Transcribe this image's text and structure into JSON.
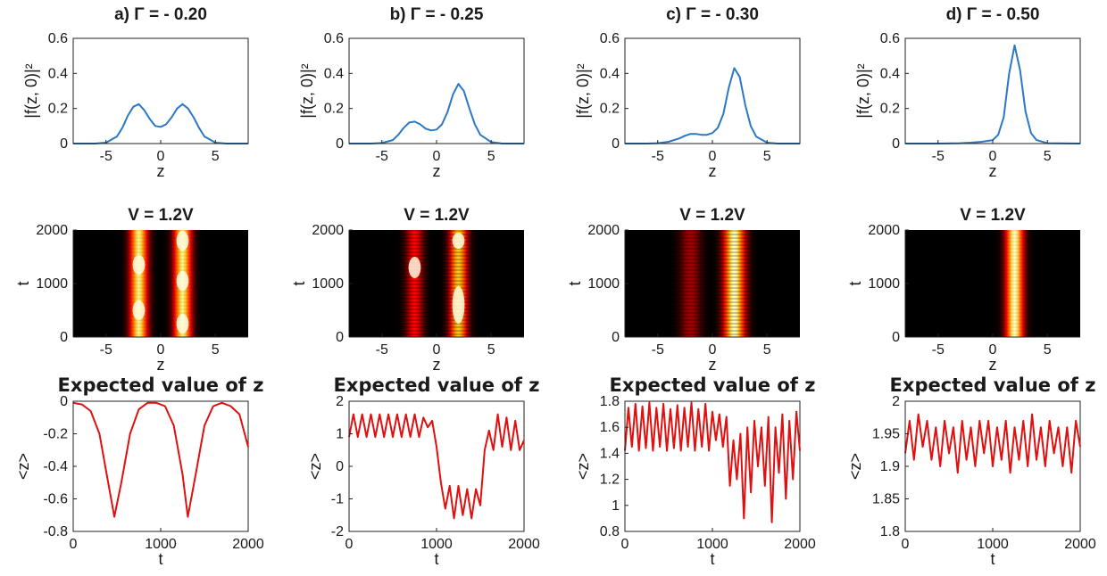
{
  "chart_data": [
    {
      "type": "line",
      "row": "density",
      "column": "a",
      "title": "a) Γ = - 0.20",
      "xlabel": "z",
      "ylabel": "|f(z, 0)|²",
      "xlim": [
        -8,
        8
      ],
      "ylim": [
        0,
        0.6
      ],
      "xticks": [
        "-5",
        "0",
        "5"
      ],
      "yticks": [
        "0",
        "0.2",
        "0.4",
        "0.6"
      ],
      "color": "#2a78c6",
      "series": [
        {
          "x": [
            -8,
            -6,
            -5,
            -4,
            -3.5,
            -3,
            -2.5,
            -2,
            -1.5,
            -1,
            -0.5,
            0,
            0.5,
            1,
            1.5,
            2,
            2.5,
            3,
            3.5,
            4,
            5,
            6,
            8
          ],
          "values": [
            0,
            0,
            0.005,
            0.04,
            0.09,
            0.16,
            0.21,
            0.225,
            0.19,
            0.14,
            0.1,
            0.095,
            0.11,
            0.15,
            0.2,
            0.225,
            0.2,
            0.15,
            0.09,
            0.04,
            0.005,
            0,
            0
          ]
        }
      ]
    },
    {
      "type": "line",
      "row": "density",
      "column": "b",
      "title": "b) Γ = - 0.25",
      "xlabel": "z",
      "ylabel": "|f(z, 0)|²",
      "xlim": [
        -8,
        8
      ],
      "ylim": [
        0,
        0.6
      ],
      "xticks": [
        "-5",
        "0",
        "5"
      ],
      "yticks": [
        "0",
        "0.2",
        "0.4",
        "0.6"
      ],
      "color": "#2a78c6",
      "series": [
        {
          "x": [
            -8,
            -6,
            -5,
            -4,
            -3.5,
            -3,
            -2.5,
            -2,
            -1.5,
            -1,
            -0.5,
            0,
            0.5,
            1,
            1.5,
            2,
            2.5,
            3,
            3.5,
            4,
            5,
            6,
            8
          ],
          "values": [
            0,
            0,
            0.003,
            0.02,
            0.05,
            0.09,
            0.12,
            0.125,
            0.11,
            0.085,
            0.075,
            0.08,
            0.11,
            0.18,
            0.28,
            0.34,
            0.3,
            0.2,
            0.11,
            0.05,
            0.008,
            0,
            0
          ]
        }
      ]
    },
    {
      "type": "line",
      "row": "density",
      "column": "c",
      "title": "c) Γ = - 0.30",
      "xlabel": "z",
      "ylabel": "|f(z, 0)|²",
      "xlim": [
        -8,
        8
      ],
      "ylim": [
        0,
        0.6
      ],
      "xticks": [
        "-5",
        "0",
        "5"
      ],
      "yticks": [
        "0",
        "0.2",
        "0.4",
        "0.6"
      ],
      "color": "#2a78c6",
      "series": [
        {
          "x": [
            -8,
            -6,
            -5,
            -4,
            -3,
            -2.5,
            -2,
            -1.5,
            -1,
            -0.5,
            0,
            0.5,
            1,
            1.5,
            2,
            2.5,
            3,
            3.5,
            4,
            5,
            6,
            8
          ],
          "values": [
            0,
            0,
            0.002,
            0.01,
            0.03,
            0.045,
            0.055,
            0.055,
            0.05,
            0.05,
            0.06,
            0.09,
            0.17,
            0.32,
            0.43,
            0.38,
            0.22,
            0.1,
            0.04,
            0.005,
            0,
            0
          ]
        }
      ]
    },
    {
      "type": "line",
      "row": "density",
      "column": "d",
      "title": "d) Γ = - 0.50",
      "xlabel": "z",
      "ylabel": "|f(z, 0)|²",
      "xlim": [
        -8,
        8
      ],
      "ylim": [
        0,
        0.6
      ],
      "xticks": [
        "-5",
        "0",
        "5"
      ],
      "yticks": [
        "0",
        "0.2",
        "0.4",
        "0.6"
      ],
      "color": "#2a78c6",
      "series": [
        {
          "x": [
            -8,
            -5,
            -3,
            -2,
            -1,
            0,
            0.5,
            1,
            1.5,
            2,
            2.5,
            3,
            3.5,
            4,
            5,
            8
          ],
          "values": [
            0,
            0,
            0.002,
            0.005,
            0.01,
            0.02,
            0.05,
            0.15,
            0.4,
            0.56,
            0.42,
            0.18,
            0.06,
            0.02,
            0.002,
            0
          ]
        }
      ]
    },
    {
      "type": "heatmap",
      "row": "evolution",
      "column": "a",
      "title": "V = 1.2V",
      "xlabel": "z",
      "ylabel": "t",
      "xlim": [
        -8,
        8
      ],
      "ylim": [
        0,
        2000
      ],
      "xticks": [
        "-5",
        "0",
        "5"
      ],
      "yticks": [
        "0",
        "1000",
        "2000"
      ],
      "bands": [
        {
          "z": -2,
          "width": 1.0,
          "intensity": 0.95
        },
        {
          "z": 2,
          "width": 1.0,
          "intensity": 0.95
        }
      ],
      "bright_spots": [
        {
          "z": -2,
          "t": 1350
        },
        {
          "z": -2,
          "t": 500
        },
        {
          "z": 2,
          "t": 1800
        },
        {
          "z": 2,
          "t": 1050
        },
        {
          "z": 2,
          "t": 250
        }
      ]
    },
    {
      "type": "heatmap",
      "row": "evolution",
      "column": "b",
      "title": "V = 1.2V",
      "xlabel": "z",
      "ylabel": "t",
      "xlim": [
        -8,
        8
      ],
      "ylim": [
        0,
        2000
      ],
      "xticks": [
        "-5",
        "0",
        "5"
      ],
      "yticks": [
        "0",
        "1000",
        "2000"
      ],
      "bands": [
        {
          "z": -2,
          "width": 1.0,
          "intensity": 0.4
        },
        {
          "z": 2,
          "width": 1.0,
          "intensity": 0.85
        }
      ],
      "bright_spots": [
        {
          "z": -2,
          "t": 1300,
          "height": 400
        },
        {
          "z": 2,
          "t": 1800,
          "height": 300
        },
        {
          "z": 2,
          "t": 600,
          "height": 700
        }
      ]
    },
    {
      "type": "heatmap",
      "row": "evolution",
      "column": "c",
      "title": "V = 1.2V",
      "xlabel": "z",
      "ylabel": "t",
      "xlim": [
        -8,
        8
      ],
      "ylim": [
        0,
        2000
      ],
      "xticks": [
        "-5",
        "0",
        "5"
      ],
      "yticks": [
        "0",
        "1000",
        "2000"
      ],
      "bands": [
        {
          "z": -2,
          "width": 1.2,
          "intensity": 0.25
        },
        {
          "z": 2,
          "width": 1.2,
          "intensity": 1.0
        }
      ],
      "bright_spots": []
    },
    {
      "type": "heatmap",
      "row": "evolution",
      "column": "d",
      "title": "V = 1.2V",
      "xlabel": "z",
      "ylabel": "t",
      "xlim": [
        -8,
        8
      ],
      "ylim": [
        0,
        2000
      ],
      "xticks": [
        "-5",
        "0",
        "5"
      ],
      "yticks": [
        "0",
        "1000",
        "2000"
      ],
      "bands": [
        {
          "z": 2,
          "width": 1.0,
          "intensity": 1.0
        }
      ],
      "bright_spots": []
    },
    {
      "type": "line",
      "row": "expected",
      "column": "a",
      "title": "Expected value of z",
      "xlabel": "t",
      "ylabel": "<z>",
      "xlim": [
        0,
        2000
      ],
      "ylim": [
        -0.8,
        0
      ],
      "xticks": [
        "0",
        "1000",
        "2000"
      ],
      "yticks": [
        "-0.8",
        "-0.6",
        "-0.4",
        "-0.2",
        "0"
      ],
      "color": "#e01010",
      "series": [
        {
          "x": [
            0,
            100,
            200,
            300,
            400,
            470,
            550,
            650,
            750,
            850,
            950,
            1050,
            1150,
            1250,
            1310,
            1400,
            1500,
            1600,
            1700,
            1800,
            1900,
            2000
          ],
          "values": [
            -0.01,
            -0.02,
            -0.06,
            -0.2,
            -0.5,
            -0.71,
            -0.5,
            -0.2,
            -0.05,
            -0.01,
            -0.01,
            -0.03,
            -0.15,
            -0.45,
            -0.71,
            -0.45,
            -0.15,
            -0.03,
            -0.01,
            -0.03,
            -0.08,
            -0.28
          ]
        }
      ]
    },
    {
      "type": "line",
      "row": "expected",
      "column": "b",
      "title": "Expected value of z",
      "xlabel": "t",
      "ylabel": "<z>",
      "xlim": [
        0,
        2000
      ],
      "ylim": [
        -2,
        2
      ],
      "xticks": [
        "0",
        "1000",
        "2000"
      ],
      "yticks": [
        "-2",
        "-1",
        "0",
        "1",
        "2"
      ],
      "color": "#e01010",
      "series": [
        {
          "x": [
            0,
            50,
            100,
            150,
            200,
            250,
            300,
            350,
            400,
            450,
            500,
            550,
            600,
            650,
            700,
            750,
            800,
            850,
            900,
            950,
            1000,
            1050,
            1100,
            1150,
            1200,
            1250,
            1300,
            1350,
            1400,
            1450,
            1500,
            1550,
            1600,
            1650,
            1700,
            1750,
            1800,
            1850,
            1900,
            1950,
            2000
          ],
          "values": [
            0.9,
            1.6,
            0.9,
            1.6,
            0.9,
            1.6,
            0.9,
            1.6,
            0.9,
            1.6,
            0.9,
            1.6,
            0.9,
            1.6,
            0.9,
            1.6,
            0.9,
            1.5,
            1.2,
            1.4,
            0.6,
            -0.5,
            -1.3,
            -0.6,
            -1.6,
            -0.6,
            -1.5,
            -0.7,
            -1.6,
            -0.7,
            -1.2,
            0.5,
            1.1,
            0.5,
            1.6,
            0.6,
            1.5,
            0.5,
            1.4,
            0.5,
            0.8
          ]
        }
      ]
    },
    {
      "type": "line",
      "row": "expected",
      "column": "c",
      "title": "Expected value of z",
      "xlabel": "t",
      "ylabel": "<z>",
      "xlim": [
        0,
        2000
      ],
      "ylim": [
        0.8,
        1.8
      ],
      "xticks": [
        "0",
        "1000",
        "2000"
      ],
      "yticks": [
        "0.8",
        "1",
        "1.2",
        "1.4",
        "1.6",
        "1.8"
      ],
      "color": "#e01010",
      "series": [
        {
          "x": [
            0,
            40,
            80,
            120,
            160,
            200,
            240,
            280,
            320,
            360,
            400,
            440,
            480,
            520,
            560,
            600,
            640,
            680,
            720,
            760,
            800,
            840,
            880,
            920,
            960,
            1000,
            1040,
            1080,
            1120,
            1160,
            1200,
            1240,
            1280,
            1320,
            1360,
            1400,
            1440,
            1480,
            1520,
            1560,
            1600,
            1640,
            1680,
            1720,
            1760,
            1800,
            1840,
            1880,
            1920,
            1960,
            2000
          ],
          "values": [
            1.42,
            1.75,
            1.45,
            1.78,
            1.42,
            1.76,
            1.44,
            1.79,
            1.42,
            1.75,
            1.45,
            1.78,
            1.42,
            1.74,
            1.44,
            1.77,
            1.42,
            1.75,
            1.45,
            1.79,
            1.42,
            1.74,
            1.45,
            1.78,
            1.42,
            1.72,
            1.5,
            1.7,
            1.45,
            1.68,
            1.15,
            1.5,
            1.2,
            1.55,
            0.9,
            1.6,
            1.1,
            1.65,
            1.3,
            1.6,
            1.15,
            1.68,
            0.87,
            1.6,
            1.25,
            1.7,
            1.05,
            1.65,
            1.2,
            1.72,
            1.42
          ]
        }
      ]
    },
    {
      "type": "line",
      "row": "expected",
      "column": "d",
      "title": "Expected value of z",
      "xlabel": "t",
      "ylabel": "<z>",
      "xlim": [
        0,
        2000
      ],
      "ylim": [
        1.8,
        2
      ],
      "xticks": [
        "0",
        "1000",
        "2000"
      ],
      "yticks": [
        "1.8",
        "1.85",
        "1.9",
        "1.95",
        "2"
      ],
      "color": "#e01010",
      "series": [
        {
          "x": [
            0,
            50,
            100,
            150,
            200,
            250,
            300,
            350,
            400,
            450,
            500,
            550,
            600,
            650,
            700,
            750,
            800,
            850,
            900,
            950,
            1000,
            1050,
            1100,
            1150,
            1200,
            1250,
            1300,
            1350,
            1400,
            1450,
            1500,
            1550,
            1600,
            1650,
            1700,
            1750,
            1800,
            1850,
            1900,
            1950,
            2000
          ],
          "values": [
            1.92,
            1.97,
            1.91,
            1.98,
            1.93,
            1.97,
            1.91,
            1.96,
            1.9,
            1.97,
            1.92,
            1.96,
            1.89,
            1.97,
            1.91,
            1.96,
            1.9,
            1.97,
            1.92,
            1.97,
            1.9,
            1.96,
            1.91,
            1.97,
            1.89,
            1.96,
            1.91,
            1.97,
            1.9,
            1.98,
            1.91,
            1.96,
            1.9,
            1.97,
            1.92,
            1.96,
            1.9,
            1.96,
            1.89,
            1.97,
            1.93
          ]
        }
      ]
    }
  ]
}
